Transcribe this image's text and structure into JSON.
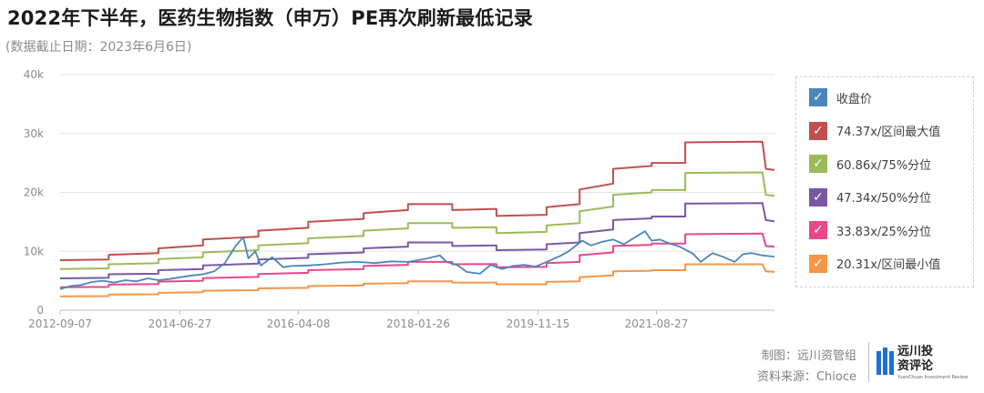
{
  "header": {
    "title": "2022年下半年，医药生物指数（申万）PE再次刷新最低记录",
    "subtitle": "(数据截止日期：2023年6月6日)"
  },
  "chart_data": {
    "type": "line",
    "y_ticks": [
      "0",
      "10k",
      "20k",
      "30k",
      "40k"
    ],
    "x_ticks": [
      "2012-09-07",
      "2014-06-27",
      "2016-04-08",
      "2018-01-26",
      "2019-11-15",
      "2021-08-27"
    ],
    "ylim": [
      0,
      40000
    ],
    "xlim": [
      "2012-09-07",
      "2023-06-06"
    ],
    "grid": "horizontal",
    "legend_position": "right",
    "series": [
      {
        "name": "收盘价",
        "color": "#4a86bd",
        "points": [
          [
            "2012-09-07",
            3600
          ],
          [
            "2012-11-01",
            4100
          ],
          [
            "2013-01-01",
            4300
          ],
          [
            "2013-03-01",
            4800
          ],
          [
            "2013-05-01",
            5000
          ],
          [
            "2013-07-01",
            4700
          ],
          [
            "2013-09-01",
            5100
          ],
          [
            "2013-11-01",
            4900
          ],
          [
            "2014-01-01",
            5400
          ],
          [
            "2014-03-01",
            5100
          ],
          [
            "2014-05-01",
            5300
          ],
          [
            "2014-07-01",
            5600
          ],
          [
            "2014-09-01",
            5900
          ],
          [
            "2014-11-01",
            6100
          ],
          [
            "2015-01-01",
            6600
          ],
          [
            "2015-03-01",
            8000
          ],
          [
            "2015-05-01",
            11000
          ],
          [
            "2015-06-10",
            12400
          ],
          [
            "2015-07-08",
            8800
          ],
          [
            "2015-08-15",
            10000
          ],
          [
            "2015-09-15",
            7600
          ],
          [
            "2015-11-15",
            9000
          ],
          [
            "2016-01-15",
            7300
          ],
          [
            "2016-03-01",
            7500
          ],
          [
            "2016-06-01",
            7600
          ],
          [
            "2016-09-01",
            7800
          ],
          [
            "2016-12-01",
            8100
          ],
          [
            "2017-03-01",
            8200
          ],
          [
            "2017-06-01",
            8000
          ],
          [
            "2017-09-01",
            8300
          ],
          [
            "2017-12-01",
            8200
          ],
          [
            "2018-03-01",
            8700
          ],
          [
            "2018-05-25",
            9300
          ],
          [
            "2018-07-01",
            8200
          ],
          [
            "2018-09-01",
            7600
          ],
          [
            "2018-10-20",
            6500
          ],
          [
            "2018-12-31",
            6200
          ],
          [
            "2019-03-01",
            7700
          ],
          [
            "2019-05-01",
            7000
          ],
          [
            "2019-07-01",
            7500
          ],
          [
            "2019-09-01",
            7700
          ],
          [
            "2019-11-01",
            7400
          ],
          [
            "2020-01-01",
            8200
          ],
          [
            "2020-03-15",
            9200
          ],
          [
            "2020-05-01",
            10000
          ],
          [
            "2020-07-15",
            11800
          ],
          [
            "2020-09-01",
            11000
          ],
          [
            "2020-11-01",
            11600
          ],
          [
            "2021-01-01",
            12000
          ],
          [
            "2021-03-01",
            11200
          ],
          [
            "2021-05-01",
            12400
          ],
          [
            "2021-06-25",
            13400
          ],
          [
            "2021-08-01",
            11800
          ],
          [
            "2021-09-15",
            12000
          ],
          [
            "2021-11-01",
            11400
          ],
          [
            "2022-01-01",
            10800
          ],
          [
            "2022-03-15",
            9600
          ],
          [
            "2022-04-27",
            8200
          ],
          [
            "2022-07-01",
            9700
          ],
          [
            "2022-09-01",
            9000
          ],
          [
            "2022-10-31",
            8200
          ],
          [
            "2022-12-15",
            9500
          ],
          [
            "2023-02-01",
            9700
          ],
          [
            "2023-04-01",
            9300
          ],
          [
            "2023-06-06",
            9100
          ]
        ]
      },
      {
        "name": "74.37x/区间最大值",
        "color": "#c0504d",
        "points": [
          [
            "2012-09-07",
            8500
          ],
          [
            "2013-06-01",
            8600
          ],
          [
            "2013-06-01",
            9400
          ],
          [
            "2014-03-01",
            9700
          ],
          [
            "2014-03-01",
            10500
          ],
          [
            "2014-11-01",
            11000
          ],
          [
            "2014-11-01",
            12000
          ],
          [
            "2015-09-01",
            12500
          ],
          [
            "2015-09-01",
            13500
          ],
          [
            "2016-06-01",
            14000
          ],
          [
            "2016-06-01",
            15000
          ],
          [
            "2017-04-01",
            15500
          ],
          [
            "2017-04-01",
            16500
          ],
          [
            "2017-12-01",
            17000
          ],
          [
            "2017-12-01",
            18000
          ],
          [
            "2018-08-01",
            18000
          ],
          [
            "2018-08-01",
            17000
          ],
          [
            "2019-04-01",
            17200
          ],
          [
            "2019-04-01",
            16000
          ],
          [
            "2020-01-01",
            16200
          ],
          [
            "2020-01-01",
            17500
          ],
          [
            "2020-07-01",
            18000
          ],
          [
            "2020-07-01",
            20500
          ],
          [
            "2021-01-01",
            21500
          ],
          [
            "2021-01-01",
            24000
          ],
          [
            "2021-08-01",
            24500
          ],
          [
            "2021-08-01",
            25000
          ],
          [
            "2022-02-01",
            25000
          ],
          [
            "2022-02-01",
            28500
          ],
          [
            "2023-04-01",
            28600
          ],
          [
            "2023-04-20",
            24000
          ],
          [
            "2023-06-06",
            23800
          ]
        ]
      },
      {
        "name": "60.86x/75%分位",
        "color": "#9bbb59",
        "points": [
          [
            "2012-09-07",
            7000
          ],
          [
            "2013-06-01",
            7100
          ],
          [
            "2013-06-01",
            7800
          ],
          [
            "2014-03-01",
            8000
          ],
          [
            "2014-03-01",
            8700
          ],
          [
            "2014-11-01",
            9000
          ],
          [
            "2014-11-01",
            9800
          ],
          [
            "2015-09-01",
            10200
          ],
          [
            "2015-09-01",
            11000
          ],
          [
            "2016-06-01",
            11400
          ],
          [
            "2016-06-01",
            12200
          ],
          [
            "2017-04-01",
            12600
          ],
          [
            "2017-04-01",
            13500
          ],
          [
            "2017-12-01",
            13900
          ],
          [
            "2017-12-01",
            14800
          ],
          [
            "2018-08-01",
            14800
          ],
          [
            "2018-08-01",
            14000
          ],
          [
            "2019-04-01",
            14100
          ],
          [
            "2019-04-01",
            13100
          ],
          [
            "2020-01-01",
            13300
          ],
          [
            "2020-01-01",
            14400
          ],
          [
            "2020-07-01",
            14800
          ],
          [
            "2020-07-01",
            16800
          ],
          [
            "2021-01-01",
            17600
          ],
          [
            "2021-01-01",
            19600
          ],
          [
            "2021-08-01",
            20000
          ],
          [
            "2021-08-01",
            20400
          ],
          [
            "2022-02-01",
            20400
          ],
          [
            "2022-02-01",
            23300
          ],
          [
            "2023-04-01",
            23400
          ],
          [
            "2023-04-20",
            19600
          ],
          [
            "2023-06-06",
            19400
          ]
        ]
      },
      {
        "name": "47.34x/50%分位",
        "color": "#7a57a5",
        "points": [
          [
            "2012-09-07",
            5400
          ],
          [
            "2013-06-01",
            5500
          ],
          [
            "2013-06-01",
            6100
          ],
          [
            "2014-03-01",
            6200
          ],
          [
            "2014-03-01",
            6800
          ],
          [
            "2014-11-01",
            7000
          ],
          [
            "2014-11-01",
            7600
          ],
          [
            "2015-09-01",
            7900
          ],
          [
            "2015-09-01",
            8600
          ],
          [
            "2016-06-01",
            8900
          ],
          [
            "2016-06-01",
            9500
          ],
          [
            "2017-04-01",
            9800
          ],
          [
            "2017-04-01",
            10500
          ],
          [
            "2017-12-01",
            10800
          ],
          [
            "2017-12-01",
            11500
          ],
          [
            "2018-08-01",
            11500
          ],
          [
            "2018-08-01",
            10900
          ],
          [
            "2019-04-01",
            11000
          ],
          [
            "2019-04-01",
            10200
          ],
          [
            "2020-01-01",
            10300
          ],
          [
            "2020-01-01",
            11200
          ],
          [
            "2020-07-01",
            11500
          ],
          [
            "2020-07-01",
            13100
          ],
          [
            "2021-01-01",
            13700
          ],
          [
            "2021-01-01",
            15300
          ],
          [
            "2021-08-01",
            15600
          ],
          [
            "2021-08-01",
            15900
          ],
          [
            "2022-02-01",
            15900
          ],
          [
            "2022-02-01",
            18100
          ],
          [
            "2023-04-01",
            18200
          ],
          [
            "2023-04-20",
            15300
          ],
          [
            "2023-06-06",
            15100
          ]
        ]
      },
      {
        "name": "33.83x/25%分位",
        "color": "#e8488a",
        "points": [
          [
            "2012-09-07",
            3900
          ],
          [
            "2013-06-01",
            3950
          ],
          [
            "2013-06-01",
            4350
          ],
          [
            "2014-03-01",
            4450
          ],
          [
            "2014-03-01",
            4850
          ],
          [
            "2014-11-01",
            5000
          ],
          [
            "2014-11-01",
            5450
          ],
          [
            "2015-09-01",
            5650
          ],
          [
            "2015-09-01",
            6150
          ],
          [
            "2016-06-01",
            6350
          ],
          [
            "2016-06-01",
            6800
          ],
          [
            "2017-04-01",
            7000
          ],
          [
            "2017-04-01",
            7500
          ],
          [
            "2017-12-01",
            7700
          ],
          [
            "2017-12-01",
            8200
          ],
          [
            "2018-08-01",
            8200
          ],
          [
            "2018-08-01",
            7800
          ],
          [
            "2019-04-01",
            7850
          ],
          [
            "2019-04-01",
            7300
          ],
          [
            "2020-01-01",
            7350
          ],
          [
            "2020-01-01",
            8000
          ],
          [
            "2020-07-01",
            8200
          ],
          [
            "2020-07-01",
            9350
          ],
          [
            "2021-01-01",
            9800
          ],
          [
            "2021-01-01",
            10900
          ],
          [
            "2021-08-01",
            11100
          ],
          [
            "2021-08-01",
            11300
          ],
          [
            "2022-02-01",
            11300
          ],
          [
            "2022-02-01",
            12900
          ],
          [
            "2023-04-01",
            13000
          ],
          [
            "2023-04-20",
            10900
          ],
          [
            "2023-06-06",
            10800
          ]
        ]
      },
      {
        "name": "20.31x/区间最小值",
        "color": "#f79646",
        "points": [
          [
            "2012-09-07",
            2350
          ],
          [
            "2013-06-01",
            2400
          ],
          [
            "2013-06-01",
            2650
          ],
          [
            "2014-03-01",
            2700
          ],
          [
            "2014-03-01",
            2950
          ],
          [
            "2014-11-01",
            3050
          ],
          [
            "2014-11-01",
            3300
          ],
          [
            "2015-09-01",
            3400
          ],
          [
            "2015-09-01",
            3700
          ],
          [
            "2016-06-01",
            3800
          ],
          [
            "2016-06-01",
            4100
          ],
          [
            "2017-04-01",
            4200
          ],
          [
            "2017-04-01",
            4500
          ],
          [
            "2017-12-01",
            4600
          ],
          [
            "2017-12-01",
            4900
          ],
          [
            "2018-08-01",
            4900
          ],
          [
            "2018-08-01",
            4700
          ],
          [
            "2019-04-01",
            4700
          ],
          [
            "2019-04-01",
            4400
          ],
          [
            "2020-01-01",
            4400
          ],
          [
            "2020-01-01",
            4800
          ],
          [
            "2020-07-01",
            4900
          ],
          [
            "2020-07-01",
            5600
          ],
          [
            "2021-01-01",
            5900
          ],
          [
            "2021-01-01",
            6600
          ],
          [
            "2021-08-01",
            6700
          ],
          [
            "2021-08-01",
            6800
          ],
          [
            "2022-02-01",
            6800
          ],
          [
            "2022-02-01",
            7800
          ],
          [
            "2023-04-01",
            7800
          ],
          [
            "2023-04-20",
            6600
          ],
          [
            "2023-06-06",
            6500
          ]
        ]
      }
    ]
  },
  "footer": {
    "credit_line1": "制图：远川资管组",
    "credit_line2": "资料来源：Chioce",
    "logo_name": "远川投资评论",
    "logo_sub": "YuanChuan Investment Review"
  }
}
